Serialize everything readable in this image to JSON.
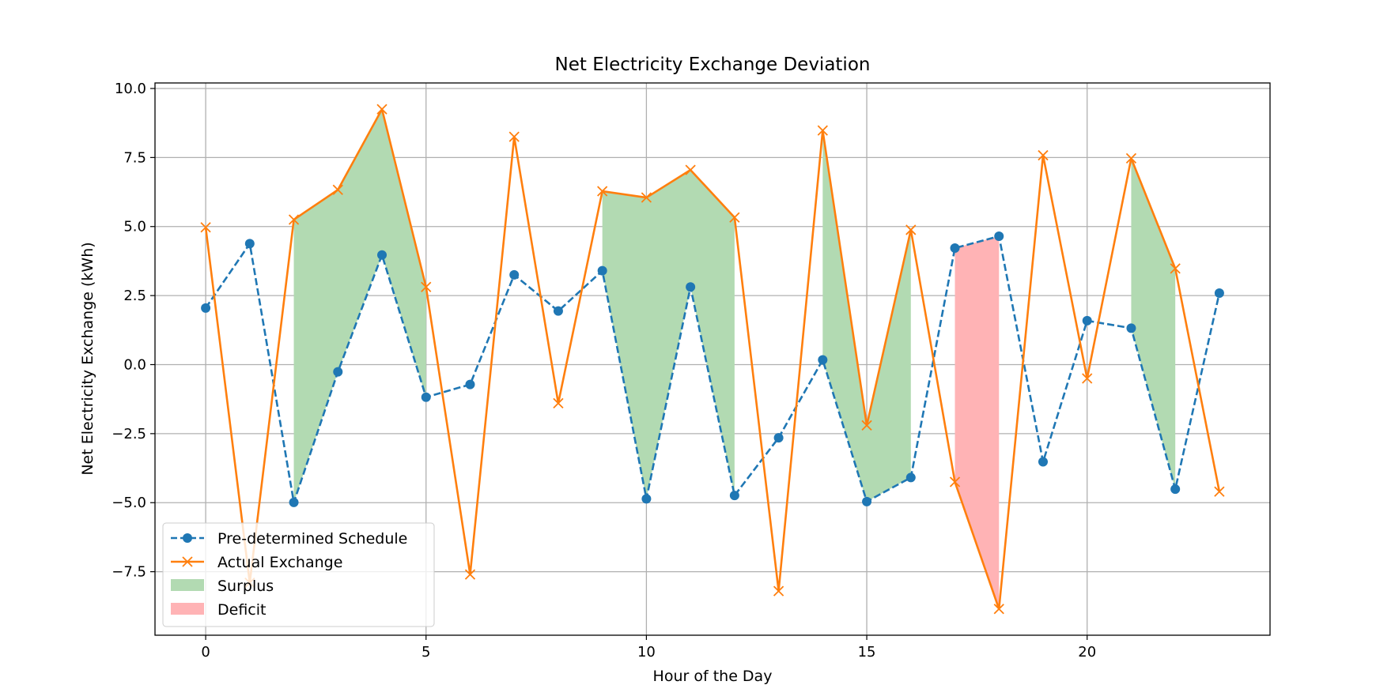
{
  "chart_data": {
    "type": "line",
    "title": "Net Electricity Exchange Deviation",
    "xlabel": "Hour of the Day",
    "ylabel": "Net Electricity Exchange (kWh)",
    "xlim": [
      -1.15,
      24.15
    ],
    "ylim": [
      -9.8,
      10.2
    ],
    "xticks": [
      0,
      5,
      10,
      15,
      20
    ],
    "yticks": [
      -7.5,
      -5.0,
      -2.5,
      0.0,
      2.5,
      5.0,
      7.5,
      10.0
    ],
    "xtick_labels": [
      "0",
      "5",
      "10",
      "15",
      "20"
    ],
    "ytick_labels": [
      "−7.5",
      "−5.0",
      "−2.5",
      "0.0",
      "2.5",
      "5.0",
      "7.5",
      "10.0"
    ],
    "grid": true,
    "legend_position": "lower-left",
    "x": [
      0,
      1,
      2,
      3,
      4,
      5,
      6,
      7,
      8,
      9,
      10,
      11,
      12,
      13,
      14,
      15,
      16,
      17,
      18,
      19,
      20,
      21,
      22,
      23
    ],
    "series": [
      {
        "name": "Pre-determined Schedule",
        "color": "#1f77b4",
        "linestyle": "dashed",
        "marker": "circle",
        "values": [
          2.05,
          4.38,
          -4.99,
          -0.26,
          3.97,
          -1.18,
          -0.72,
          3.25,
          1.94,
          3.4,
          -4.86,
          2.81,
          -4.74,
          -2.65,
          0.17,
          -4.96,
          -4.09,
          4.22,
          4.65,
          -3.52,
          1.59,
          1.32,
          -4.51,
          2.59
        ]
      },
      {
        "name": "Actual Exchange",
        "color": "#ff7f0e",
        "linestyle": "solid",
        "marker": "x",
        "values": [
          4.97,
          -7.9,
          5.25,
          6.33,
          9.25,
          2.81,
          -7.6,
          8.25,
          -1.4,
          6.28,
          6.05,
          7.05,
          5.33,
          -8.2,
          8.48,
          -2.2,
          4.88,
          -4.25,
          -8.85,
          7.58,
          -0.5,
          7.47,
          3.48,
          -4.6
        ]
      }
    ],
    "fills": [
      {
        "name": "Surplus",
        "color": "#b2dab2",
        "rule": "actual > schedule"
      },
      {
        "name": "Deficit",
        "color": "#ffb3b5",
        "rule": "actual < schedule"
      }
    ]
  }
}
